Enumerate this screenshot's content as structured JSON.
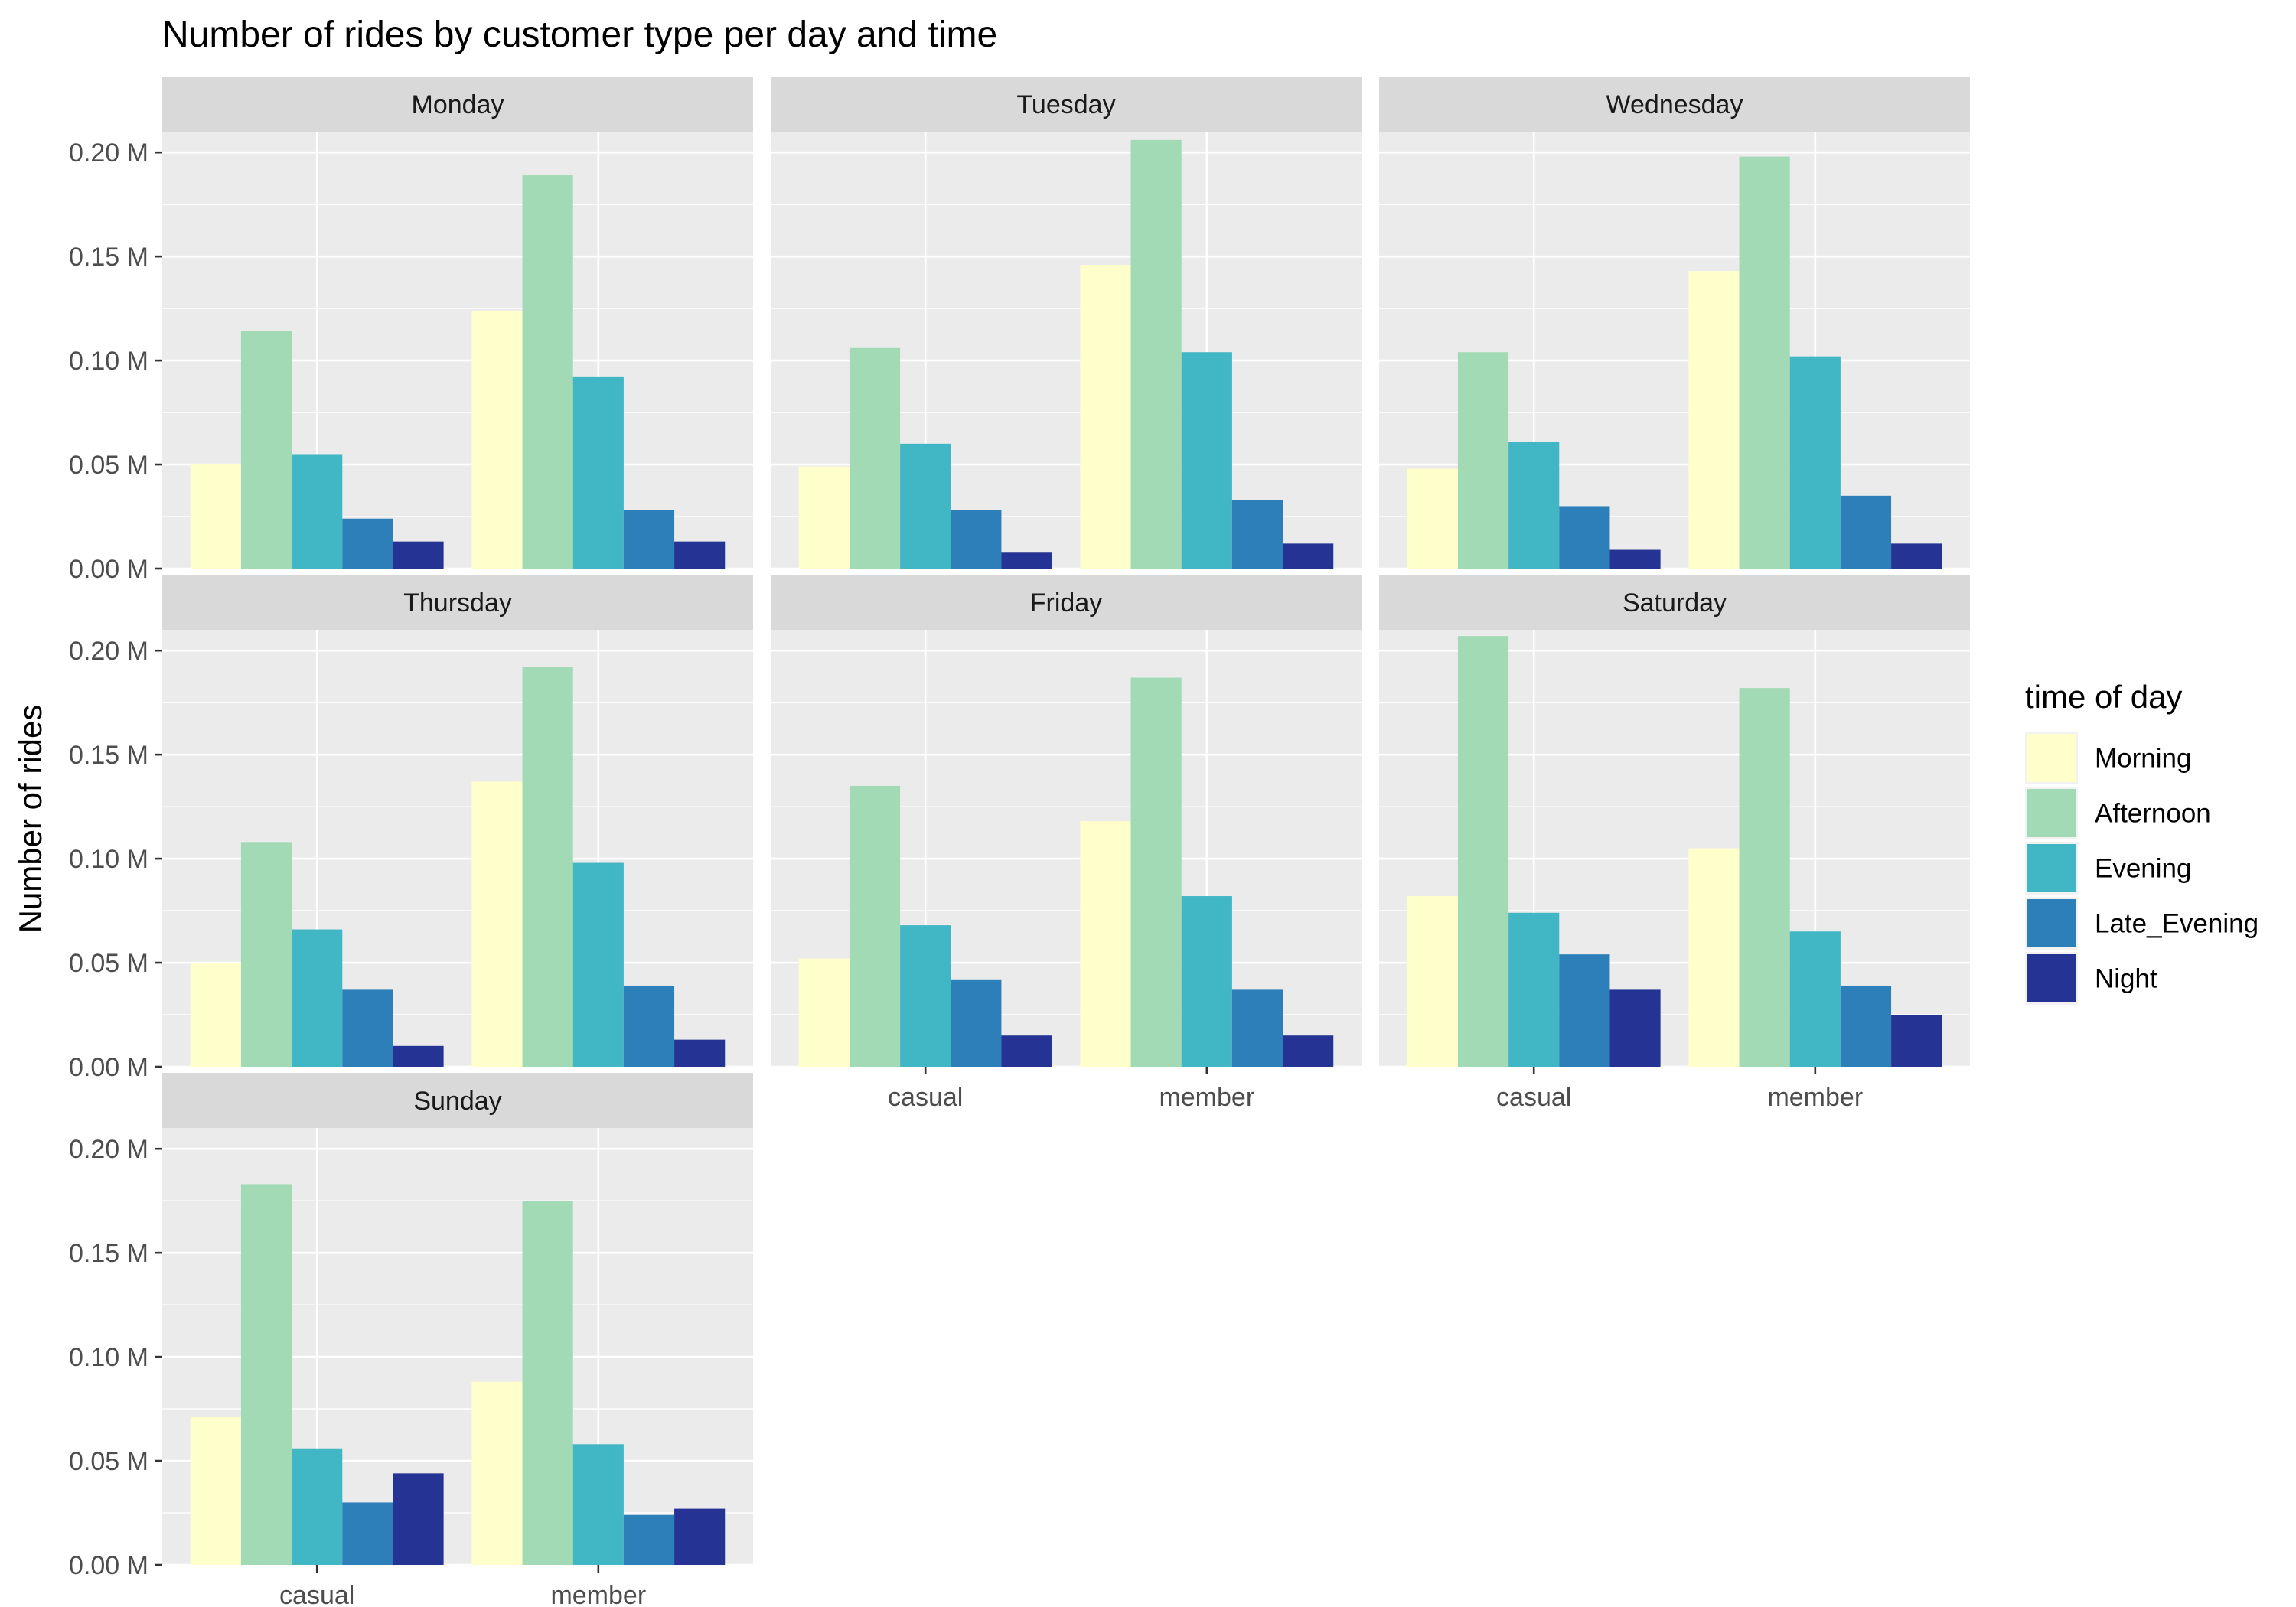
{
  "chart_data": {
    "type": "bar",
    "layout": "faceted",
    "title": "Number of rides by customer type per day and time",
    "xlabel": "",
    "ylabel": "Number of rides",
    "ylim": [
      0,
      0.21
    ],
    "y_ticks": [
      0.0,
      0.05,
      0.1,
      0.15,
      0.2
    ],
    "y_tick_labels": [
      "0.00 M",
      "0.05 M",
      "0.10 M",
      "0.15 M",
      "0.20 M"
    ],
    "y_unit": "M",
    "categories": [
      "casual",
      "member"
    ],
    "grid": true,
    "legend_title": "time of day",
    "legend_position": "right",
    "series_names": [
      "Morning",
      "Afternoon",
      "Evening",
      "Late_Evening",
      "Night"
    ],
    "colors": [
      "#ffffcc",
      "#a1dab4",
      "#41b6c4",
      "#2c7fb8",
      "#253494"
    ],
    "panels": [
      {
        "facet": "Monday",
        "values": {
          "casual": [
            0.05,
            0.114,
            0.055,
            0.024,
            0.013
          ],
          "member": [
            0.124,
            0.189,
            0.092,
            0.028,
            0.013
          ]
        }
      },
      {
        "facet": "Tuesday",
        "values": {
          "casual": [
            0.049,
            0.106,
            0.06,
            0.028,
            0.008
          ],
          "member": [
            0.146,
            0.206,
            0.104,
            0.033,
            0.012
          ]
        }
      },
      {
        "facet": "Wednesday",
        "values": {
          "casual": [
            0.048,
            0.104,
            0.061,
            0.03,
            0.009
          ],
          "member": [
            0.143,
            0.198,
            0.102,
            0.035,
            0.012
          ]
        }
      },
      {
        "facet": "Thursday",
        "values": {
          "casual": [
            0.05,
            0.108,
            0.066,
            0.037,
            0.01
          ],
          "member": [
            0.137,
            0.192,
            0.098,
            0.039,
            0.013
          ]
        }
      },
      {
        "facet": "Friday",
        "values": {
          "casual": [
            0.052,
            0.135,
            0.068,
            0.042,
            0.015
          ],
          "member": [
            0.118,
            0.187,
            0.082,
            0.037,
            0.015
          ]
        }
      },
      {
        "facet": "Saturday",
        "values": {
          "casual": [
            0.082,
            0.207,
            0.074,
            0.054,
            0.037
          ],
          "member": [
            0.105,
            0.182,
            0.065,
            0.039,
            0.025
          ]
        }
      },
      {
        "facet": "Sunday",
        "values": {
          "casual": [
            0.071,
            0.183,
            0.056,
            0.03,
            0.044
          ],
          "member": [
            0.088,
            0.175,
            0.058,
            0.024,
            0.027
          ]
        }
      }
    ]
  }
}
